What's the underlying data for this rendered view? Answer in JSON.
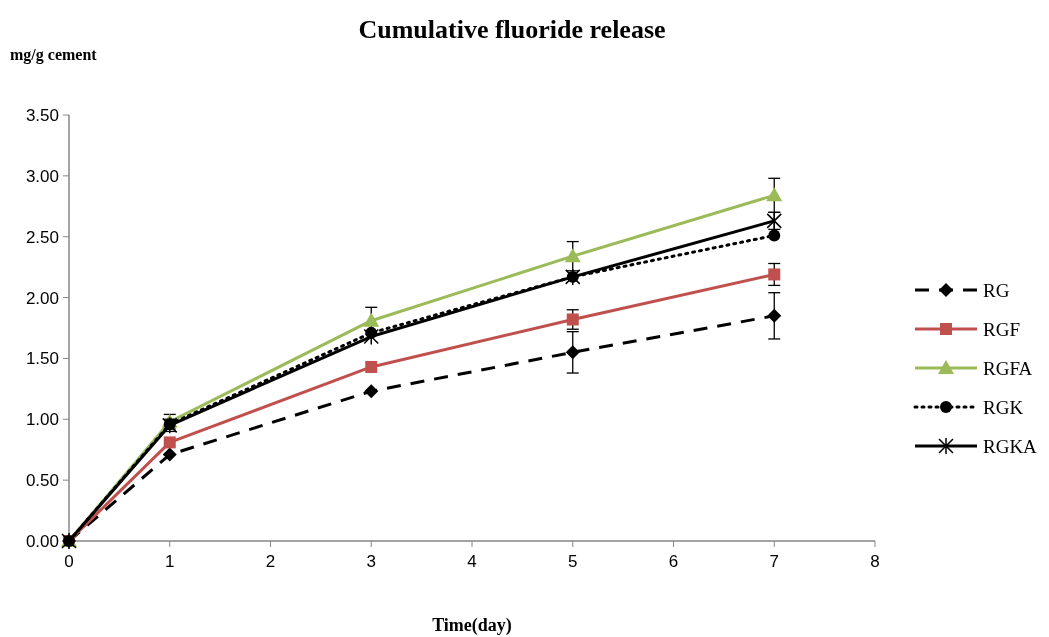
{
  "chart_data": {
    "type": "line",
    "title": "Cumulative fluoride release",
    "xlabel": "Time(day)",
    "ylabel": "mg/g cement",
    "x": [
      0,
      1,
      3,
      5,
      7
    ],
    "series": [
      {
        "name": "RG",
        "color": "#000000",
        "marker": "diamond",
        "line_style": "dashed",
        "values": [
          0,
          0.71,
          1.23,
          1.55,
          1.85
        ],
        "errors": [
          null,
          null,
          null,
          0.17,
          0.19
        ]
      },
      {
        "name": "RGF",
        "color": "#c0504d",
        "marker": "square",
        "line_style": "solid",
        "values": [
          0,
          0.81,
          1.43,
          1.82,
          2.19
        ],
        "errors": [
          null,
          null,
          null,
          0.08,
          0.09
        ]
      },
      {
        "name": "RGFA",
        "color": "#9bbb59",
        "marker": "triangle",
        "line_style": "solid",
        "values": [
          0,
          0.98,
          1.81,
          2.34,
          2.84
        ],
        "errors": [
          null,
          0.06,
          0.11,
          0.12,
          0.14
        ]
      },
      {
        "name": "RGK",
        "color": "#000000",
        "marker": "circle",
        "line_style": "dotted",
        "values": [
          0,
          0.96,
          1.71,
          2.17,
          2.51
        ],
        "errors": [
          null,
          null,
          null,
          null,
          null
        ]
      },
      {
        "name": "RGKA",
        "color": "#000000",
        "marker": "cross",
        "line_style": "solid",
        "values": [
          0,
          0.95,
          1.68,
          2.17,
          2.63
        ],
        "errors": [
          null,
          0.05,
          null,
          null,
          0.07
        ]
      }
    ],
    "xlim": [
      0,
      8
    ],
    "xticks": [
      0,
      1,
      2,
      3,
      4,
      5,
      6,
      7,
      8
    ],
    "ylim": [
      0,
      3.5
    ],
    "yticks": [
      {
        "value": 0,
        "label": "0.00"
      },
      {
        "value": 0.5,
        "label": "0.50"
      },
      {
        "value": 1,
        "label": "1.00"
      },
      {
        "value": 1.5,
        "label": "1.50"
      },
      {
        "value": 2,
        "label": "2.00"
      },
      {
        "value": 2.5,
        "label": "2.50"
      },
      {
        "value": 3,
        "label": "3.00"
      },
      {
        "value": 3.5,
        "label": "3.50"
      }
    ],
    "grid": false,
    "legend": "right"
  }
}
